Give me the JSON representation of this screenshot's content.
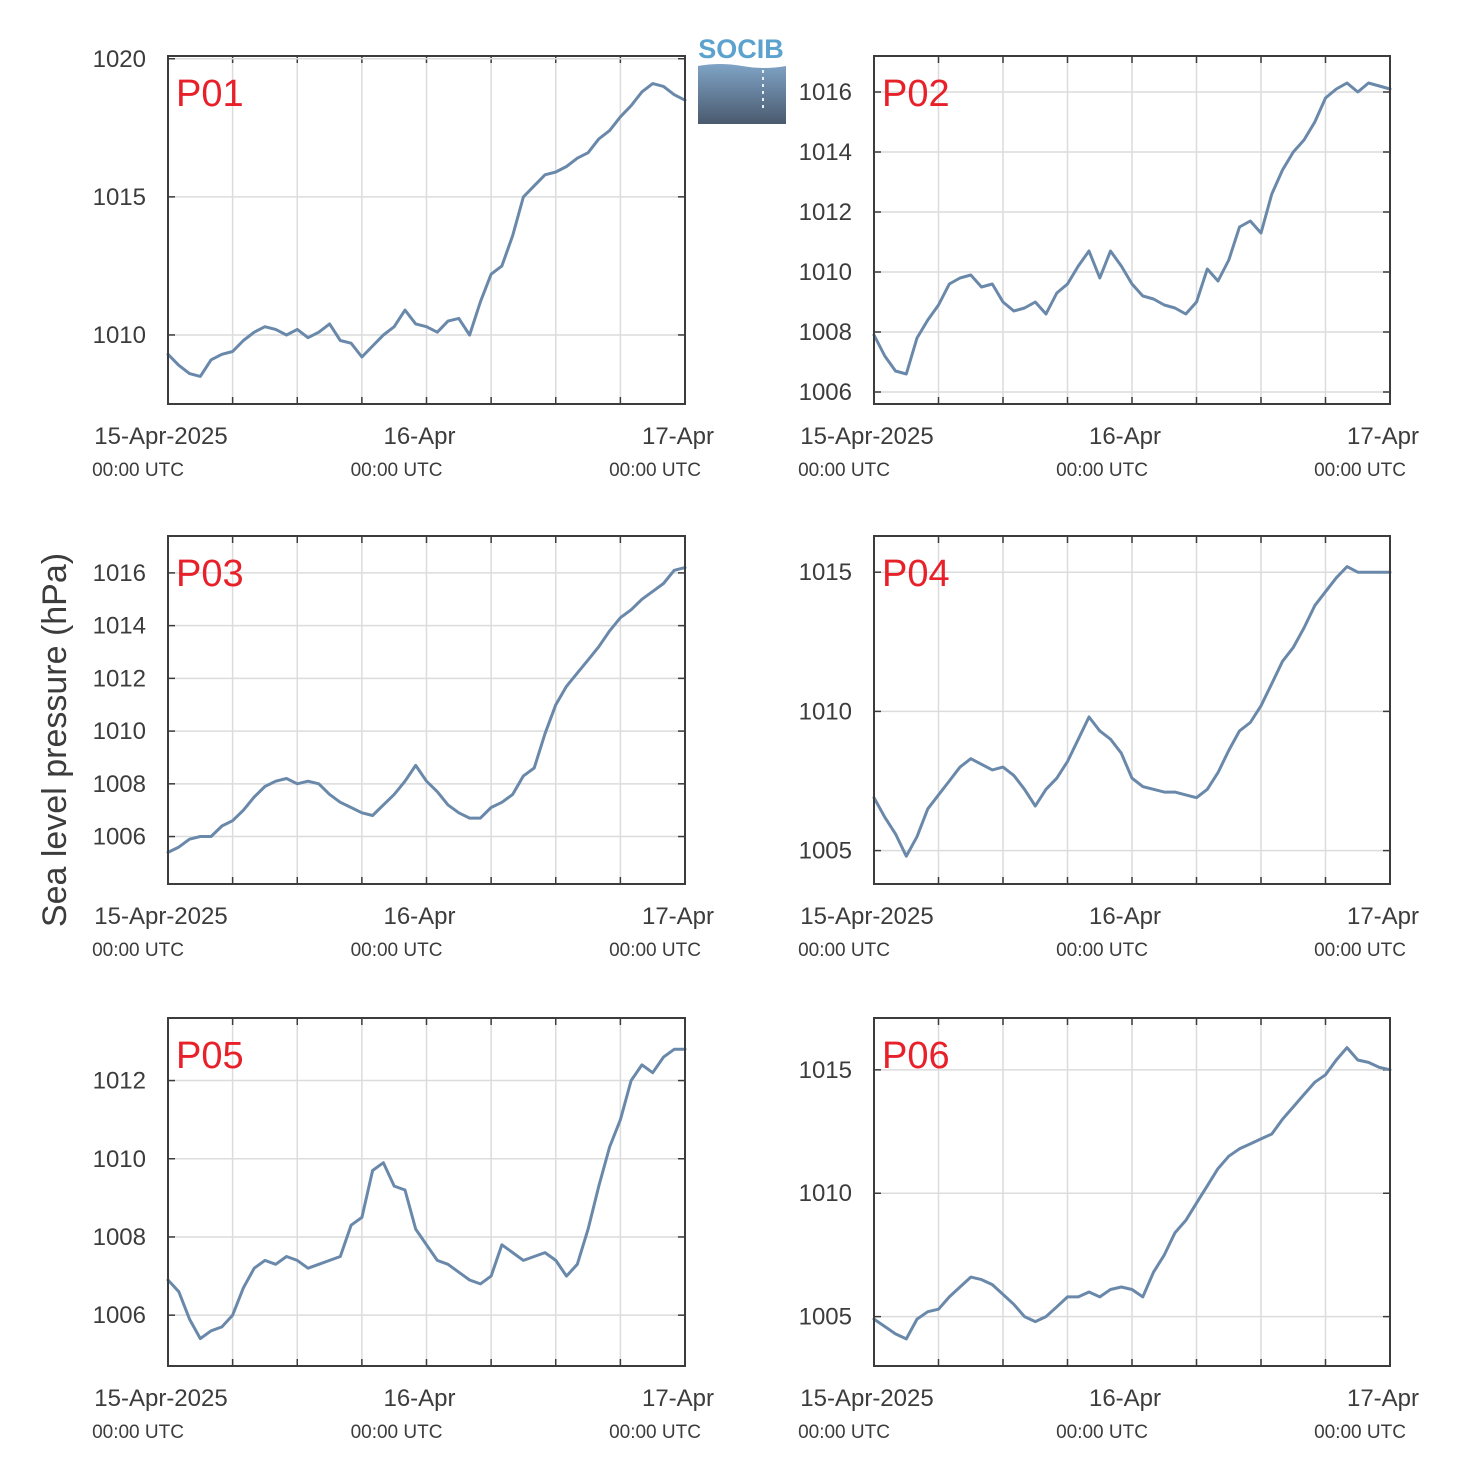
{
  "figure": {
    "ylabel": "Sea level pressure (hPa)",
    "logo_text": "SOCIB",
    "line_color": "#6a89aa",
    "label_color": "#e8202a",
    "grid_color": "#dcdcdc",
    "axis_color": "#3c3c3c",
    "x_tick_labels": [
      "15-Apr-2025",
      "16-Apr",
      "17-Apr"
    ],
    "x_tick_sublabels": [
      "00:00 UTC",
      "00:00 UTC",
      "00:00 UTC"
    ]
  },
  "chart_data": [
    {
      "type": "line",
      "panel": "P01",
      "ylabel": "Sea level pressure (hPa)",
      "x_unit": "hours since 15-Apr-2025 00:00 UTC",
      "xlim": [
        0,
        48
      ],
      "ylim": [
        1007.5,
        1020.1
      ],
      "yticks": [
        1010,
        1015,
        1020
      ],
      "grid": true,
      "x": [
        0,
        1,
        2,
        3,
        4,
        5,
        6,
        7,
        8,
        9,
        10,
        11,
        12,
        13,
        14,
        15,
        16,
        17,
        18,
        19,
        20,
        21,
        22,
        23,
        24,
        25,
        26,
        27,
        28,
        29,
        30,
        31,
        32,
        33,
        34,
        35,
        36,
        37,
        38,
        39,
        40,
        41,
        42,
        43,
        44,
        45,
        46,
        47,
        48
      ],
      "y": [
        1009.3,
        1008.9,
        1008.6,
        1008.5,
        1009.1,
        1009.3,
        1009.4,
        1009.8,
        1010.1,
        1010.3,
        1010.2,
        1010.0,
        1010.2,
        1009.9,
        1010.1,
        1010.4,
        1009.8,
        1009.7,
        1009.2,
        1009.6,
        1010.0,
        1010.3,
        1010.9,
        1010.4,
        1010.3,
        1010.1,
        1010.5,
        1010.6,
        1010.0,
        1011.2,
        1012.2,
        1012.5,
        1013.6,
        1015.0,
        1015.4,
        1015.8,
        1015.9,
        1016.1,
        1016.4,
        1016.6,
        1017.1,
        1017.4,
        1017.9,
        1018.3,
        1018.8,
        1019.1,
        1019.0,
        1018.7,
        1018.5
      ]
    },
    {
      "type": "line",
      "panel": "P02",
      "ylabel": "Sea level pressure (hPa)",
      "x_unit": "hours since 15-Apr-2025 00:00 UTC",
      "xlim": [
        0,
        48
      ],
      "ylim": [
        1005.6,
        1017.2
      ],
      "yticks": [
        1006,
        1008,
        1010,
        1012,
        1014,
        1016
      ],
      "grid": true,
      "x": [
        0,
        1,
        2,
        3,
        4,
        5,
        6,
        7,
        8,
        9,
        10,
        11,
        12,
        13,
        14,
        15,
        16,
        17,
        18,
        19,
        20,
        21,
        22,
        23,
        24,
        25,
        26,
        27,
        28,
        29,
        30,
        31,
        32,
        33,
        34,
        35,
        36,
        37,
        38,
        39,
        40,
        41,
        42,
        43,
        44,
        45,
        46,
        47,
        48
      ],
      "y": [
        1007.9,
        1007.2,
        1006.7,
        1006.6,
        1007.8,
        1008.4,
        1008.9,
        1009.6,
        1009.8,
        1009.9,
        1009.5,
        1009.6,
        1009.0,
        1008.7,
        1008.8,
        1009.0,
        1008.6,
        1009.3,
        1009.6,
        1010.2,
        1010.7,
        1009.8,
        1010.7,
        1010.2,
        1009.6,
        1009.2,
        1009.1,
        1008.9,
        1008.8,
        1008.6,
        1009.0,
        1010.1,
        1009.7,
        1010.4,
        1011.5,
        1011.7,
        1011.3,
        1012.6,
        1013.4,
        1014.0,
        1014.4,
        1015.0,
        1015.8,
        1016.1,
        1016.3,
        1016.0,
        1016.3,
        1016.2,
        1016.1
      ]
    },
    {
      "type": "line",
      "panel": "P03",
      "ylabel": "Sea level pressure (hPa)",
      "x_unit": "hours since 15-Apr-2025 00:00 UTC",
      "xlim": [
        0,
        48
      ],
      "ylim": [
        1004.2,
        1017.4
      ],
      "yticks": [
        1006,
        1008,
        1010,
        1012,
        1014,
        1016
      ],
      "grid": true,
      "x": [
        0,
        1,
        2,
        3,
        4,
        5,
        6,
        7,
        8,
        9,
        10,
        11,
        12,
        13,
        14,
        15,
        16,
        17,
        18,
        19,
        20,
        21,
        22,
        23,
        24,
        25,
        26,
        27,
        28,
        29,
        30,
        31,
        32,
        33,
        34,
        35,
        36,
        37,
        38,
        39,
        40,
        41,
        42,
        43,
        44,
        45,
        46,
        47,
        48
      ],
      "y": [
        1005.4,
        1005.6,
        1005.9,
        1006.0,
        1006.0,
        1006.4,
        1006.6,
        1007.0,
        1007.5,
        1007.9,
        1008.1,
        1008.2,
        1008.0,
        1008.1,
        1008.0,
        1007.6,
        1007.3,
        1007.1,
        1006.9,
        1006.8,
        1007.2,
        1007.6,
        1008.1,
        1008.7,
        1008.1,
        1007.7,
        1007.2,
        1006.9,
        1006.7,
        1006.7,
        1007.1,
        1007.3,
        1007.6,
        1008.3,
        1008.6,
        1009.9,
        1011.0,
        1011.7,
        1012.2,
        1012.7,
        1013.2,
        1013.8,
        1014.3,
        1014.6,
        1015.0,
        1015.3,
        1015.6,
        1016.1,
        1016.2
      ]
    },
    {
      "type": "line",
      "panel": "P04",
      "ylabel": "Sea level pressure (hPa)",
      "x_unit": "hours since 15-Apr-2025 00:00 UTC",
      "xlim": [
        0,
        48
      ],
      "ylim": [
        1003.8,
        1016.3
      ],
      "yticks": [
        1005,
        1010,
        1015
      ],
      "grid": true,
      "x": [
        0,
        1,
        2,
        3,
        4,
        5,
        6,
        7,
        8,
        9,
        10,
        11,
        12,
        13,
        14,
        15,
        16,
        17,
        18,
        19,
        20,
        21,
        22,
        23,
        24,
        25,
        26,
        27,
        28,
        29,
        30,
        31,
        32,
        33,
        34,
        35,
        36,
        37,
        38,
        39,
        40,
        41,
        42,
        43,
        44,
        45,
        46,
        47,
        48
      ],
      "y": [
        1006.9,
        1006.2,
        1005.6,
        1004.8,
        1005.5,
        1006.5,
        1007.0,
        1007.5,
        1008.0,
        1008.3,
        1008.1,
        1007.9,
        1008.0,
        1007.7,
        1007.2,
        1006.6,
        1007.2,
        1007.6,
        1008.2,
        1009.0,
        1009.8,
        1009.3,
        1009.0,
        1008.5,
        1007.6,
        1007.3,
        1007.2,
        1007.1,
        1007.1,
        1007.0,
        1006.9,
        1007.2,
        1007.8,
        1008.6,
        1009.3,
        1009.6,
        1010.2,
        1011.0,
        1011.8,
        1012.3,
        1013.0,
        1013.8,
        1014.3,
        1014.8,
        1015.2,
        1015.0,
        1015.0,
        1015.0,
        1015.0
      ]
    },
    {
      "type": "line",
      "panel": "P05",
      "ylabel": "Sea level pressure (hPa)",
      "x_unit": "hours since 15-Apr-2025 00:00 UTC",
      "xlim": [
        0,
        48
      ],
      "ylim": [
        1004.7,
        1013.6
      ],
      "yticks": [
        1006,
        1008,
        1010,
        1012
      ],
      "grid": true,
      "x": [
        0,
        1,
        2,
        3,
        4,
        5,
        6,
        7,
        8,
        9,
        10,
        11,
        12,
        13,
        14,
        15,
        16,
        17,
        18,
        19,
        20,
        21,
        22,
        23,
        24,
        25,
        26,
        27,
        28,
        29,
        30,
        31,
        32,
        33,
        34,
        35,
        36,
        37,
        38,
        39,
        40,
        41,
        42,
        43,
        44,
        45,
        46,
        47,
        48
      ],
      "y": [
        1006.9,
        1006.6,
        1005.9,
        1005.4,
        1005.6,
        1005.7,
        1006.0,
        1006.7,
        1007.2,
        1007.4,
        1007.3,
        1007.5,
        1007.4,
        1007.2,
        1007.3,
        1007.4,
        1007.5,
        1008.3,
        1008.5,
        1009.7,
        1009.9,
        1009.3,
        1009.2,
        1008.2,
        1007.8,
        1007.4,
        1007.3,
        1007.1,
        1006.9,
        1006.8,
        1007.0,
        1007.8,
        1007.6,
        1007.4,
        1007.5,
        1007.6,
        1007.4,
        1007.0,
        1007.3,
        1008.2,
        1009.3,
        1010.3,
        1011.0,
        1012.0,
        1012.4,
        1012.2,
        1012.6,
        1012.8,
        1012.8
      ]
    },
    {
      "type": "line",
      "panel": "P06",
      "ylabel": "Sea level pressure (hPa)",
      "x_unit": "hours since 15-Apr-2025 00:00 UTC",
      "xlim": [
        0,
        48
      ],
      "ylim": [
        1003.0,
        1017.1
      ],
      "yticks": [
        1005,
        1010,
        1015
      ],
      "grid": true,
      "x": [
        0,
        1,
        2,
        3,
        4,
        5,
        6,
        7,
        8,
        9,
        10,
        11,
        12,
        13,
        14,
        15,
        16,
        17,
        18,
        19,
        20,
        21,
        22,
        23,
        24,
        25,
        26,
        27,
        28,
        29,
        30,
        31,
        32,
        33,
        34,
        35,
        36,
        37,
        38,
        39,
        40,
        41,
        42,
        43,
        44,
        45,
        46,
        47,
        48
      ],
      "y": [
        1004.9,
        1004.6,
        1004.3,
        1004.1,
        1004.9,
        1005.2,
        1005.3,
        1005.8,
        1006.2,
        1006.6,
        1006.5,
        1006.3,
        1005.9,
        1005.5,
        1005.0,
        1004.8,
        1005.0,
        1005.4,
        1005.8,
        1005.8,
        1006.0,
        1005.8,
        1006.1,
        1006.2,
        1006.1,
        1005.8,
        1006.8,
        1007.5,
        1008.4,
        1008.9,
        1009.6,
        1010.3,
        1011.0,
        1011.5,
        1011.8,
        1012.0,
        1012.2,
        1012.4,
        1013.0,
        1013.5,
        1014.0,
        1014.5,
        1014.8,
        1015.4,
        1015.9,
        1015.4,
        1015.3,
        1015.1,
        1015.0
      ]
    }
  ]
}
